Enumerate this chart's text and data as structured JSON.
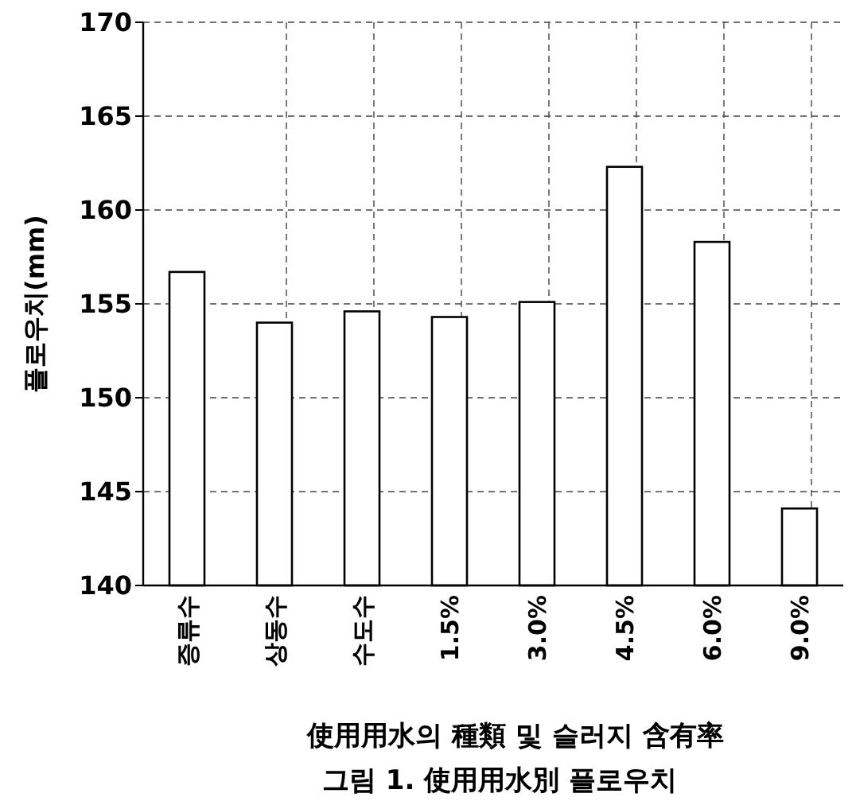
{
  "chart_data": {
    "type": "bar",
    "categories": [
      "증류수",
      "상동수",
      "수도수",
      "1.5%",
      "3.0%",
      "4.5%",
      "6.0%",
      "9.0%"
    ],
    "values": [
      156.7,
      154.0,
      154.6,
      154.3,
      155.1,
      162.3,
      158.3,
      144.1
    ],
    "color": "#ffffff",
    "ylabel": "플로우치(mm)",
    "xlabel": "使用用水의 種類 및 슬러지 含有率",
    "annotations": [
      "그림 1. 使用用水別 플로우치"
    ],
    "ylim": [
      140,
      170
    ],
    "yticks": [
      140,
      145,
      150,
      155,
      160,
      165,
      170
    ],
    "grid": true
  }
}
